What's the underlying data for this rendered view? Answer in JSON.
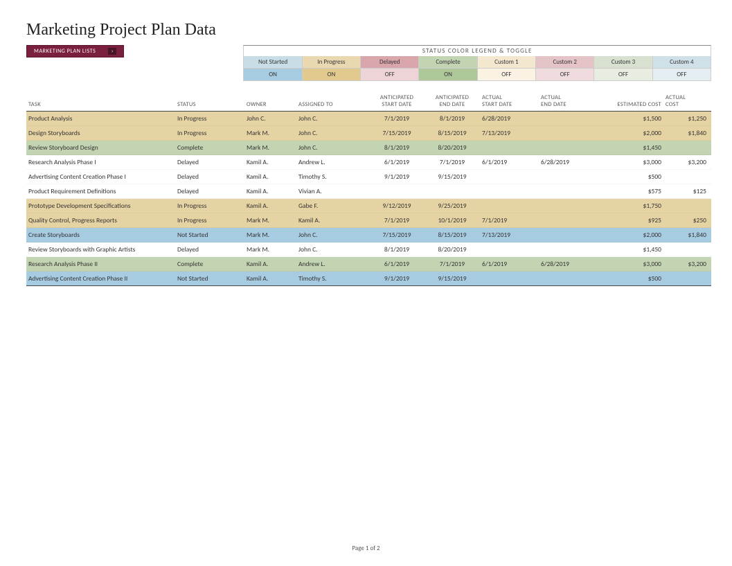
{
  "title": "Marketing Project Plan Data",
  "button": {
    "label": "MARKETING PLAN LISTS",
    "icon": "›"
  },
  "legend": {
    "title": "STATUS COLOR LEGEND & TOGGLE",
    "items": [
      {
        "label": "Not Started",
        "bg": "#c9dde6",
        "toggle": "ON",
        "toggle_bg": "#a7cbe0"
      },
      {
        "label": "In Progress",
        "bg": "#ead9b0",
        "toggle": "ON",
        "toggle_bg": "#e2c98e"
      },
      {
        "label": "Delayed",
        "bg": "#d9a6ac",
        "toggle": "OFF",
        "toggle_bg": "#eed4d7"
      },
      {
        "label": "Complete",
        "bg": "#c3d4b2",
        "toggle": "ON",
        "toggle_bg": "#aec89a"
      },
      {
        "label": "Custom 1",
        "bg": "#f4e7cf",
        "toggle": "OFF",
        "toggle_bg": "#faf2e3"
      },
      {
        "label": "Custom 2",
        "bg": "#e4c4c7",
        "toggle": "OFF",
        "toggle_bg": "#f0dcde"
      },
      {
        "label": "Custom 3",
        "bg": "#d8e0cf",
        "toggle": "OFF",
        "toggle_bg": "#e8ede1"
      },
      {
        "label": "Custom 4",
        "bg": "#cfe0e8",
        "toggle": "OFF",
        "toggle_bg": "#e3edf2"
      }
    ]
  },
  "columns": [
    {
      "label": "TASK",
      "align": "l"
    },
    {
      "label": "STATUS",
      "align": "l"
    },
    {
      "label": "OWNER",
      "align": "l"
    },
    {
      "label": "ASSIGNED TO",
      "align": "l"
    },
    {
      "label": "ANTICIPATED\nSTART DATE",
      "align": "c"
    },
    {
      "label": "ANTICIPATED\nEND DATE",
      "align": "c"
    },
    {
      "label": "ACTUAL\nSTART DATE",
      "align": "l"
    },
    {
      "label": "ACTUAL\nEND DATE",
      "align": "l"
    },
    {
      "label": "ESTIMATED COST",
      "align": "r"
    },
    {
      "label": "ACTUAL\nCOST",
      "align": "l"
    }
  ],
  "status_colors": {
    "In Progress": "#e6d3a3",
    "Complete": "#c3d4b2",
    "Not Started": "#a7cbe0",
    "Delayed": "#ffffff"
  },
  "rows": [
    {
      "task": "Product Analysis",
      "status": "In Progress",
      "owner": "John C.",
      "assigned": "John C.",
      "astart": "7/1/2019",
      "aend": "8/1/2019",
      "rstart": "6/28/2019",
      "rend": "",
      "est": "$1,500",
      "act": "$1,250"
    },
    {
      "task": "Design Storyboards",
      "status": "In Progress",
      "owner": "Mark M.",
      "assigned": "John C.",
      "astart": "7/15/2019",
      "aend": "8/15/2019",
      "rstart": "7/13/2019",
      "rend": "",
      "est": "$2,000",
      "act": "$1,840"
    },
    {
      "task": "Review Storyboard Design",
      "status": "Complete",
      "owner": "Mark M.",
      "assigned": "John C.",
      "astart": "8/1/2019",
      "aend": "8/20/2019",
      "rstart": "",
      "rend": "",
      "est": "$1,450",
      "act": ""
    },
    {
      "task": "Research Analysis Phase I",
      "status": "Delayed",
      "owner": "Kamil A.",
      "assigned": "Andrew L.",
      "astart": "6/1/2019",
      "aend": "7/1/2019",
      "rstart": "6/1/2019",
      "rend": "6/28/2019",
      "est": "$3,000",
      "act": "$3,200"
    },
    {
      "task": "Advertising Content Creation Phase I",
      "status": "Delayed",
      "owner": "Kamil A.",
      "assigned": "Timothy S.",
      "astart": "9/1/2019",
      "aend": "9/15/2019",
      "rstart": "",
      "rend": "",
      "est": "$500",
      "act": ""
    },
    {
      "task": "Product Requirement Definitions",
      "status": "Delayed",
      "owner": "Kamil A.",
      "assigned": "Vivian A.",
      "astart": "",
      "aend": "",
      "rstart": "",
      "rend": "",
      "est": "$575",
      "act": "$125"
    },
    {
      "task": "Prototype Development Specifications",
      "status": "In Progress",
      "owner": "Kamil A.",
      "assigned": "Gabe F.",
      "astart": "9/12/2019",
      "aend": "9/25/2019",
      "rstart": "",
      "rend": "",
      "est": "$1,750",
      "act": ""
    },
    {
      "task": "Quality Control, Progress Reports",
      "status": "In Progress",
      "owner": "Mark M.",
      "assigned": "Kamil A.",
      "astart": "7/1/2019",
      "aend": "10/1/2019",
      "rstart": "7/1/2019",
      "rend": "",
      "est": "$925",
      "act": "$250"
    },
    {
      "task": "Create Storyboards",
      "status": "Not Started",
      "owner": "Mark M.",
      "assigned": "John C.",
      "astart": "7/15/2019",
      "aend": "8/15/2019",
      "rstart": "7/13/2019",
      "rend": "",
      "est": "$2,000",
      "act": "$1,840"
    },
    {
      "task": "Review Storyboards with Graphic Artists",
      "status": "Delayed",
      "owner": "Mark M.",
      "assigned": "John C.",
      "astart": "8/1/2019",
      "aend": "8/20/2019",
      "rstart": "",
      "rend": "",
      "est": "$1,450",
      "act": ""
    },
    {
      "task": "Research Analysis Phase II",
      "status": "Complete",
      "owner": "Kamil A.",
      "assigned": "Andrew L.",
      "astart": "6/1/2019",
      "aend": "7/1/2019",
      "rstart": "6/1/2019",
      "rend": "6/28/2019",
      "est": "$3,000",
      "act": "$3,200"
    },
    {
      "task": "Advertising Content Creation Phase II",
      "status": "Not Started",
      "owner": "Kamil A.",
      "assigned": "Timothy S.",
      "astart": "9/1/2019",
      "aend": "9/15/2019",
      "rstart": "",
      "rend": "",
      "est": "$500",
      "act": ""
    }
  ],
  "footer": "Page 1 of 2"
}
